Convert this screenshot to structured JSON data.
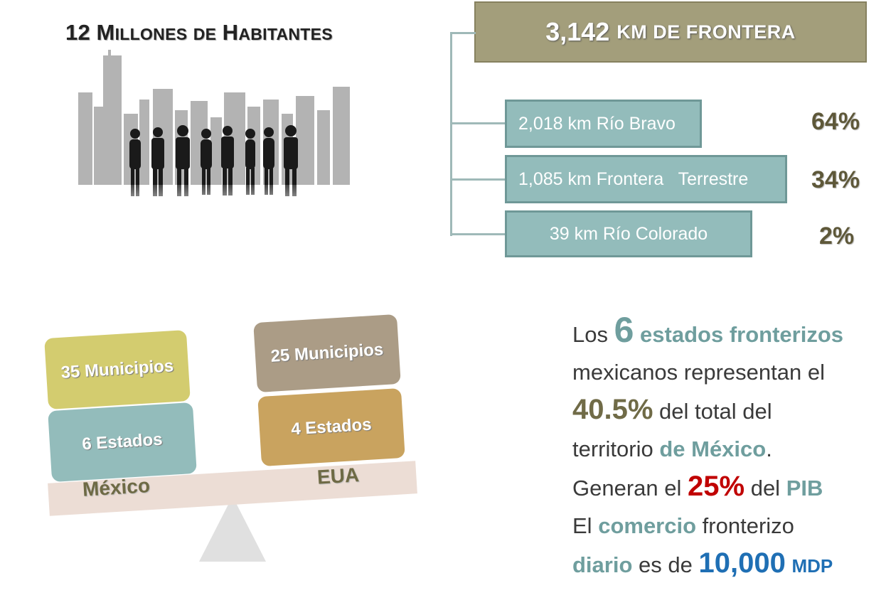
{
  "population": {
    "title_num": "12",
    "title_M": "M",
    "title_illones": "ILLONES",
    "title_de": "DE",
    "title_H": "H",
    "title_abitantes": "ABITANTES"
  },
  "frontier": {
    "total_num": "3,142",
    "total_rest": "KM DE FRONTERA",
    "segments": [
      {
        "label": "2,018 km Río Bravo",
        "percent": "64%"
      },
      {
        "label": "1,085 km Frontera   Terrestre",
        "percent": "34%"
      },
      {
        "label": "39 km Río Colorado",
        "percent": "2%"
      }
    ]
  },
  "scale": {
    "mexico": {
      "municipios": "35 Municipios",
      "estados": "6 Estados",
      "label": "México"
    },
    "eua": {
      "municipios": "25 Municipios",
      "estados": "4 Estados",
      "label": "EUA"
    }
  },
  "info": {
    "l1_a": "Los",
    "l1_num": "6",
    "l1_b": "estados fronterizos",
    "l2": "mexicanos representan el",
    "l3_num": "40.5%",
    "l3_b": "del total del",
    "l4_a": "territorio",
    "l4_b": "de México",
    "l4_c": ".",
    "l5_a": "Generan el",
    "l5_num": "25%",
    "l5_b": "del",
    "l5_c": "PIB",
    "l6_a": "El",
    "l6_b": "comercio",
    "l6_c": "fronterizo",
    "l7_a": "diario",
    "l7_b": "es de",
    "l7_num": "10,000",
    "l7_unit": "MDP"
  },
  "colors": {
    "frontier_header": "#a39e7b",
    "segment": "#93bcbb",
    "box_yellow": "#d3cc6f",
    "box_teal": "#93bcbb",
    "box_taupe": "#ab9c86",
    "box_tan": "#c9a35f",
    "beam": "#ecddd5",
    "red": "#c00000",
    "blue": "#1f6fb4"
  }
}
